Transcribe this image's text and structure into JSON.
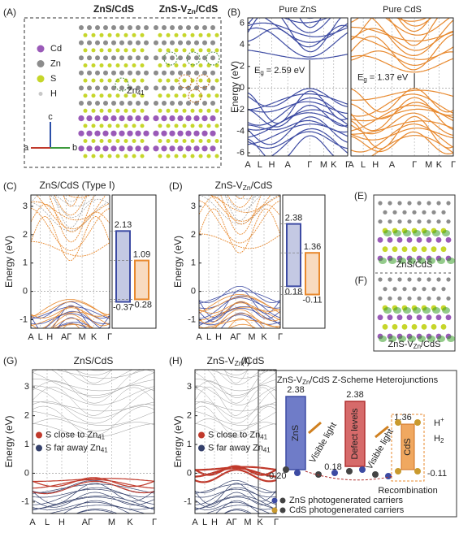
{
  "panel_a": {
    "label": "(A)",
    "title_left": "ZnS/CdS",
    "title_right": {
      "main": "ZnS-V",
      "sub": "Zn",
      "rest": "/CdS"
    },
    "legend": [
      {
        "text": "Cd",
        "color": "#9a5ab8"
      },
      {
        "text": "Zn",
        "color": "#8c8c8c"
      },
      {
        "text": "S",
        "color": "#c6d62a"
      },
      {
        "text": "H",
        "color": "#c8c8c8"
      }
    ],
    "zn_label": {
      "main": "Zn",
      "sub": "41"
    },
    "axes": {
      "c": "c",
      "a": "a",
      "b": "b"
    }
  },
  "panel_b": {
    "label": "(B)",
    "ylabel": "Energy (eV)",
    "ylim": [
      -6.3,
      6.5
    ],
    "yticks": [
      6,
      4,
      2,
      0,
      -2,
      -4,
      -6
    ],
    "plots": [
      {
        "title": "Pure ZnS",
        "color": "#3d4ba3",
        "xticks": [
          "A",
          "L",
          "H",
          "A",
          "Γ",
          "M",
          "K",
          "Γ"
        ],
        "gap": {
          "main": "E",
          "sub": "g",
          "rest": " = 2.59 eV"
        }
      },
      {
        "title": "Pure CdS",
        "color": "#e8892e",
        "xticks": [
          "A",
          "L",
          "H",
          "A",
          "Γ",
          "M",
          "K",
          "Γ"
        ],
        "gap": {
          "main": "E",
          "sub": "g",
          "rest": " = 1.37 eV"
        }
      }
    ]
  },
  "panel_c": {
    "label": "(C)",
    "title": "ZnS/CdS (Type Ⅰ)",
    "ylabel": "Energy (eV)",
    "ylim": [
      -1.3,
      3.4
    ],
    "yticks": [
      3,
      2,
      1,
      0,
      -1
    ],
    "xticks": [
      "A",
      "L",
      "H",
      "AΓ",
      "M",
      "K",
      "Γ"
    ],
    "bars": [
      {
        "top": 2.13,
        "bottom": -0.37,
        "color": "#3d4ba3"
      },
      {
        "top": 1.09,
        "bottom": -0.28,
        "color": "#e8892e"
      }
    ]
  },
  "panel_d": {
    "label": "(D)",
    "title": {
      "main": "ZnS-V",
      "sub": "Zn",
      "rest": "/CdS"
    },
    "ylabel": "Energy (eV)",
    "ylim": [
      -1.3,
      3.4
    ],
    "yticks": [
      3,
      2,
      1,
      0,
      -1
    ],
    "xticks": [
      "A",
      "L",
      "H",
      "AΓ",
      "M",
      "K",
      "Γ"
    ],
    "bars": [
      {
        "top": 2.38,
        "bottom": 0.18,
        "color": "#3d4ba3"
      },
      {
        "top": 1.36,
        "bottom": -0.11,
        "color": "#e8892e"
      }
    ]
  },
  "panel_ef": {
    "label_e": "(E)",
    "label_f": "(F)",
    "caption_e": "ZnS/CdS",
    "caption_f": {
      "main": "ZnS-V",
      "sub": "Zn",
      "rest": "/CdS"
    }
  },
  "panel_g": {
    "label": "(G)",
    "title": "ZnS/CdS",
    "ylabel": "Energy (eV)",
    "ylim": [
      -1.4,
      3.6
    ],
    "yticks": [
      3,
      2,
      1,
      0,
      -1
    ],
    "xticks": [
      "A",
      "L",
      "H",
      "AΓ",
      "M",
      "K",
      "Γ"
    ],
    "legend": [
      {
        "main": "S close to Zn",
        "sub": "41",
        "color": "#c0392b"
      },
      {
        "main": "S far away Zn",
        "sub": "41",
        "color": "#34406b"
      }
    ]
  },
  "panel_h": {
    "label": "(H)",
    "title": {
      "main": "ZnS-V",
      "sub": "Zn",
      "rest": "/CdS"
    },
    "ylabel": "Energy (eV)",
    "ylim": [
      -1.4,
      3.6
    ],
    "yticks": [
      3,
      2,
      1,
      0,
      -1
    ],
    "xticks": [
      "A",
      "L",
      "H",
      "AΓ",
      "M",
      "K",
      "Γ"
    ],
    "legend": [
      {
        "main": "S close to Zn",
        "sub": "41",
        "color": "#c0392b"
      },
      {
        "main": "S far away Zn",
        "sub": "41",
        "color": "#34406b"
      }
    ]
  },
  "panel_i": {
    "label": "(I)",
    "title": {
      "main": "ZnS-V",
      "sub": "Zn",
      "rest": "/CdS Z-Scheme Heterojunctions"
    },
    "zns_top": "2.38",
    "zns_bottom": "-0.20",
    "zns": "ZnS",
    "light1": "Visible light",
    "defect_top": "2.38",
    "defect": "Defect levels",
    "defect_bottom": "0.18",
    "light2": "Visible light",
    "cds_top": "1.36",
    "h_plus": {
      "main": "H",
      "sup": "+"
    },
    "h2": {
      "main": "H",
      "sub": "2"
    },
    "cds": "CdS",
    "cds_bottom": "-0.11",
    "recombination": "Recombination",
    "legend": [
      {
        "text": "ZnS photogenerated carriers",
        "color": "#3d4ba3"
      },
      {
        "text": "CdS photogenerated carriers",
        "color": "#c99a2e"
      }
    ]
  }
}
